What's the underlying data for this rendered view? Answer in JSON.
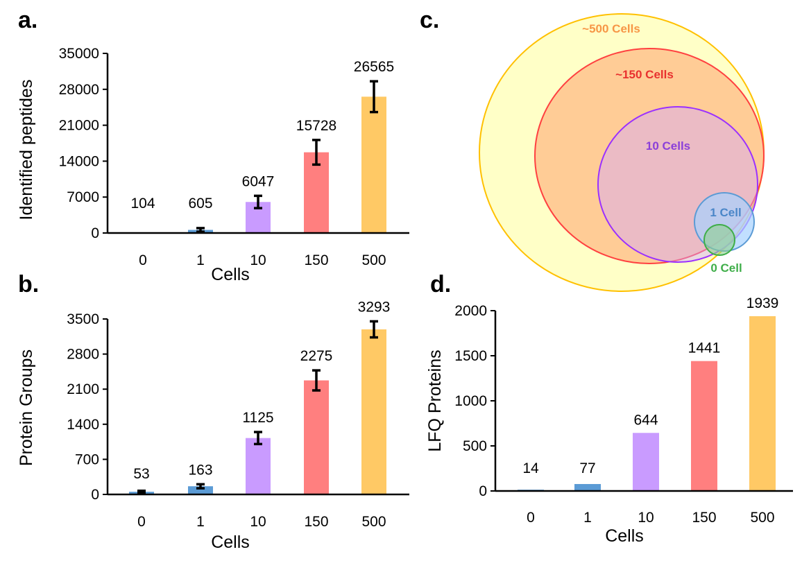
{
  "colors": {
    "cells_0": "#5b9bd5",
    "cells_1": "#5b9bd5",
    "cells_10": "#c99bff",
    "cells_150": "#ff7f7f",
    "cells_500": "#ffc965"
  },
  "chart_data": [
    {
      "id": "a",
      "panel_label": "a.",
      "type": "bar",
      "categories": [
        "0",
        "1",
        "10",
        "150",
        "500"
      ],
      "values": [
        104,
        605,
        6047,
        15728,
        26565
      ],
      "data_labels": [
        "104",
        "605",
        "6047",
        "15728",
        "26565"
      ],
      "errors": [
        0,
        350,
        1200,
        2400,
        3000
      ],
      "xlabel": "Cells",
      "ylabel": "Identified peptides",
      "ylim": [
        0,
        35000
      ],
      "yticks": [
        "0",
        "7000",
        "14000",
        "21000",
        "28000",
        "35000"
      ],
      "grid": false
    },
    {
      "id": "b",
      "panel_label": "b.",
      "type": "bar",
      "categories": [
        "0",
        "1",
        "10",
        "150",
        "500"
      ],
      "values": [
        53,
        163,
        1125,
        2275,
        3293
      ],
      "data_labels": [
        "53",
        "163",
        "1125",
        "2275",
        "3293"
      ],
      "errors": [
        20,
        40,
        120,
        200,
        160
      ],
      "xlabel": "Cells",
      "ylabel": "Protein Groups",
      "ylim": [
        0,
        3500
      ],
      "yticks": [
        "0",
        "700",
        "1400",
        "2100",
        "2800",
        "3500"
      ],
      "grid": false
    },
    {
      "id": "c",
      "panel_label": "c.",
      "type": "venn",
      "sets": [
        {
          "label": "~500 Cells",
          "size": 26565,
          "color": "#ffc965"
        },
        {
          "label": "~150 Cells",
          "size": 15728,
          "color": "#ff7f7f"
        },
        {
          "label": "10 Cells",
          "size": 6047,
          "color": "#c99bff"
        },
        {
          "label": "1 Cell",
          "size": 605,
          "color": "#5b9bd5"
        },
        {
          "label": "0 Cell",
          "size": 104,
          "color": "#3fae49"
        }
      ]
    },
    {
      "id": "d",
      "panel_label": "d.",
      "type": "bar",
      "categories": [
        "0",
        "1",
        "10",
        "150",
        "500"
      ],
      "values": [
        14,
        77,
        644,
        1441,
        1939
      ],
      "data_labels": [
        "14",
        "77",
        "644",
        "1441",
        "1939"
      ],
      "xlabel": "Cells",
      "ylabel": "LFQ Proteins",
      "ylim": [
        0,
        2000
      ],
      "yticks": [
        "0",
        "500",
        "1000",
        "1500",
        "2000"
      ],
      "grid": false
    }
  ]
}
